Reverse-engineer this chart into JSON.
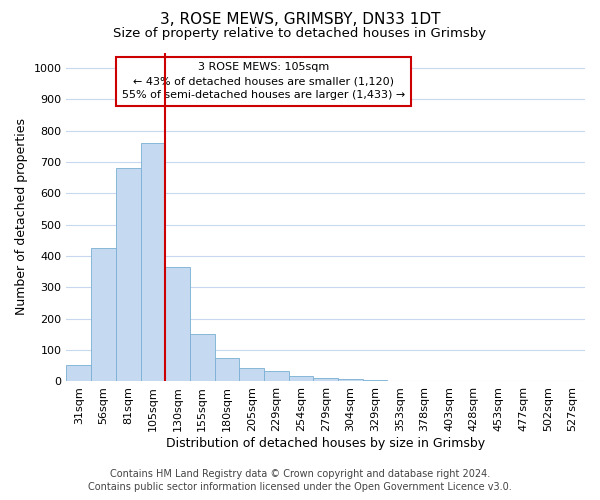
{
  "title": "3, ROSE MEWS, GRIMSBY, DN33 1DT",
  "subtitle": "Size of property relative to detached houses in Grimsby",
  "xlabel": "Distribution of detached houses by size in Grimsby",
  "ylabel": "Number of detached properties",
  "categories": [
    "31sqm",
    "56sqm",
    "81sqm",
    "105sqm",
    "130sqm",
    "155sqm",
    "180sqm",
    "205sqm",
    "229sqm",
    "254sqm",
    "279sqm",
    "304sqm",
    "329sqm",
    "353sqm",
    "378sqm",
    "403sqm",
    "428sqm",
    "453sqm",
    "477sqm",
    "502sqm",
    "527sqm"
  ],
  "values": [
    52,
    425,
    680,
    760,
    365,
    152,
    75,
    42,
    32,
    18,
    12,
    8,
    5,
    3,
    2,
    1,
    1,
    1,
    0,
    0,
    0
  ],
  "bar_color": "#c5d9f0",
  "bar_edge_color": "#7aafd4",
  "background_color": "#ffffff",
  "grid_color": "#c8d8ee",
  "vline_color": "#cc0000",
  "vline_index": 3,
  "annotation_text": "3 ROSE MEWS: 105sqm\n← 43% of detached houses are smaller (1,120)\n55% of semi-detached houses are larger (1,433) →",
  "annotation_box_facecolor": "#ffffff",
  "annotation_box_edgecolor": "#cc0000",
  "ylim": [
    0,
    1050
  ],
  "yticks": [
    0,
    100,
    200,
    300,
    400,
    500,
    600,
    700,
    800,
    900,
    1000
  ],
  "footer_line1": "Contains HM Land Registry data © Crown copyright and database right 2024.",
  "footer_line2": "Contains public sector information licensed under the Open Government Licence v3.0.",
  "title_fontsize": 11,
  "subtitle_fontsize": 9.5,
  "axis_label_fontsize": 9,
  "tick_fontsize": 8,
  "annotation_fontsize": 8,
  "footer_fontsize": 7
}
